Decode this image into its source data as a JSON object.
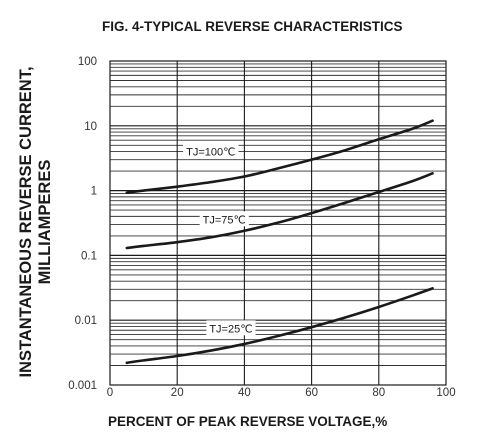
{
  "chart_data": {
    "type": "line",
    "title": "FIG. 4-TYPICAL REVERSE CHARACTERISTICS",
    "xlabel": "PERCENT OF PEAK REVERSE VOLTAGE,%",
    "ylabel_lines": [
      "INSTANTANEOUS REVERSE CURRENT,",
      "MILLIAMPERES"
    ],
    "xlim": [
      0,
      100
    ],
    "ylim": [
      0.001,
      100
    ],
    "yscale": "log",
    "grid": true,
    "x_ticks": [
      "0",
      "20",
      "40",
      "60",
      "80",
      "100"
    ],
    "y_ticks": [
      "100",
      "10",
      "1",
      "0.1",
      "0.01",
      "0.001"
    ],
    "series": [
      {
        "name": "TJ=100℃",
        "x": [
          5,
          10,
          20,
          30,
          40,
          50,
          60,
          70,
          80,
          90,
          96
        ],
        "y": [
          0.93,
          1.0,
          1.15,
          1.35,
          1.65,
          2.2,
          3.0,
          4.2,
          6.2,
          9.0,
          12.0
        ]
      },
      {
        "name": "TJ=75℃",
        "x": [
          5,
          10,
          20,
          30,
          40,
          50,
          60,
          70,
          80,
          90,
          96
        ],
        "y": [
          0.13,
          0.14,
          0.16,
          0.19,
          0.24,
          0.32,
          0.45,
          0.65,
          0.95,
          1.4,
          1.85
        ]
      },
      {
        "name": "TJ=25℃",
        "x": [
          5,
          10,
          20,
          30,
          40,
          50,
          60,
          70,
          80,
          90,
          96
        ],
        "y": [
          0.0022,
          0.0024,
          0.0028,
          0.0034,
          0.0043,
          0.0057,
          0.0078,
          0.011,
          0.016,
          0.024,
          0.031
        ]
      }
    ]
  }
}
